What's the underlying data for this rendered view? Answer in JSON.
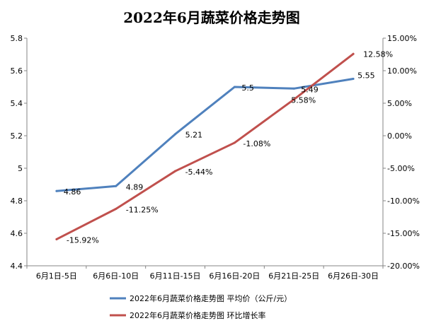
{
  "chart_data": {
    "type": "line",
    "title": "2022年6月蔬菜价格走势图",
    "categories": [
      "6月1日-5日",
      "6月6日-10日",
      "6月11日-15日",
      "6月16日-20日",
      "6月21日-25日",
      "6月26日-30日"
    ],
    "series": [
      {
        "name": "2022年6月蔬菜价格走势图 平均价（公斤/元）",
        "axis": "left",
        "color": "#4f81bd",
        "values": [
          4.86,
          4.89,
          5.21,
          5.5,
          5.49,
          5.55
        ],
        "labels": [
          "4.86",
          "4.89",
          "5.21",
          "5.5",
          "5.49",
          "5.55"
        ]
      },
      {
        "name": "2022年6月蔬菜价格走势图 环比增长率",
        "axis": "right",
        "color": "#c0504d",
        "values": [
          -15.92,
          -11.25,
          -5.44,
          -1.08,
          5.58,
          12.58
        ],
        "labels": [
          "-15.92%",
          "-11.25%",
          "-5.44%",
          "-1.08%",
          "5.58%",
          "12.58%"
        ]
      }
    ],
    "y_left": {
      "range": [
        4.4,
        5.8
      ],
      "ticks": [
        4.4,
        4.6,
        4.8,
        5,
        5.2,
        5.4,
        5.6,
        5.8
      ],
      "tick_labels": [
        "4.4",
        "4.6",
        "4.8",
        "5",
        "5.2",
        "5.4",
        "5.6",
        "5.8"
      ]
    },
    "y_right": {
      "range": [
        -20,
        15
      ],
      "ticks": [
        -20,
        -15,
        -10,
        -5,
        0,
        5,
        10,
        15
      ],
      "tick_labels": [
        "-20.00%",
        "-15.00%",
        "-10.00%",
        "-5.00%",
        "0.00%",
        "5.00%",
        "10.00%",
        "15.00%"
      ]
    },
    "grid": false,
    "legend_position": "bottom"
  }
}
